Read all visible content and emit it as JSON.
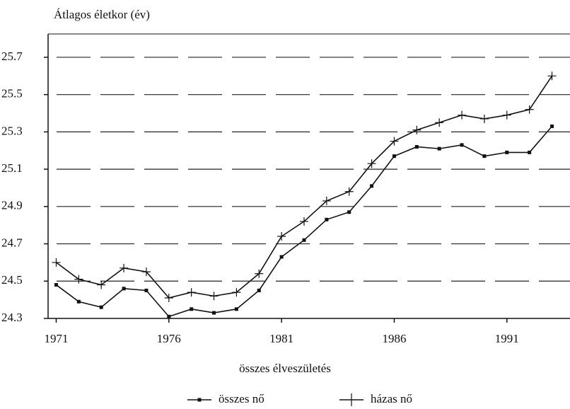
{
  "chart_data": {
    "type": "line",
    "y_label": "Átlagos életkor (év)",
    "x_label": "összes élveszületés",
    "x": [
      1971,
      1972,
      1973,
      1974,
      1975,
      1976,
      1977,
      1978,
      1979,
      1980,
      1981,
      1982,
      1983,
      1984,
      1985,
      1986,
      1987,
      1988,
      1989,
      1990,
      1991,
      1992,
      1993
    ],
    "series": [
      {
        "name": "összes nő",
        "color": "#111111",
        "marker": "dot",
        "values": [
          24.48,
          24.39,
          24.36,
          24.46,
          24.45,
          24.31,
          24.35,
          24.33,
          24.35,
          24.45,
          24.63,
          24.72,
          24.83,
          24.87,
          25.01,
          25.17,
          25.22,
          25.21,
          25.23,
          25.17,
          25.19,
          25.19,
          25.33
        ]
      },
      {
        "name": "házas nő",
        "color": "#111111",
        "marker": "plus",
        "values": [
          24.6,
          24.51,
          24.48,
          24.57,
          24.55,
          24.41,
          24.44,
          24.42,
          24.44,
          24.54,
          24.74,
          24.82,
          24.93,
          24.98,
          25.13,
          25.25,
          25.31,
          25.35,
          25.39,
          25.37,
          25.39,
          25.42,
          25.6
        ]
      }
    ],
    "xlim": [
      1970.64,
      1993.8
    ],
    "xticks": [
      1971,
      1976,
      1981,
      1986,
      1991
    ],
    "ylim": [
      24.3,
      25.825
    ],
    "yticks": [
      24.3,
      24.5,
      24.7,
      24.9,
      25.1,
      25.3,
      25.5,
      25.7
    ],
    "grid": true
  }
}
